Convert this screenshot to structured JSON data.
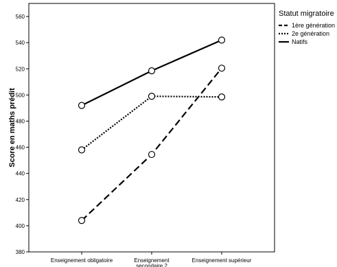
{
  "chart_data": {
    "type": "line",
    "title": "",
    "xlabel": "",
    "ylabel": "Score en maths prédit",
    "categories": [
      [
        "Enseignement obligatoire"
      ],
      [
        "Enseignement",
        "secondaire 2"
      ],
      [
        "Enseignement supérieur"
      ]
    ],
    "ylim": [
      380,
      570
    ],
    "yticks": [
      380,
      400,
      420,
      440,
      460,
      480,
      500,
      520,
      540,
      560
    ],
    "legend": {
      "title": "Statut migratoire",
      "placement": "right"
    },
    "series": [
      {
        "name": "1ère génération",
        "style": "dashed",
        "values": [
          404,
          454.5,
          520.5
        ]
      },
      {
        "name": "2e génération",
        "style": "dotted",
        "values": [
          458,
          499,
          498.5
        ]
      },
      {
        "name": "Natifs",
        "style": "solid",
        "values": [
          492,
          518.5,
          542
        ]
      }
    ],
    "colors": {
      "line": "#000000",
      "frame": "#000000",
      "background": "#ffffff"
    }
  }
}
